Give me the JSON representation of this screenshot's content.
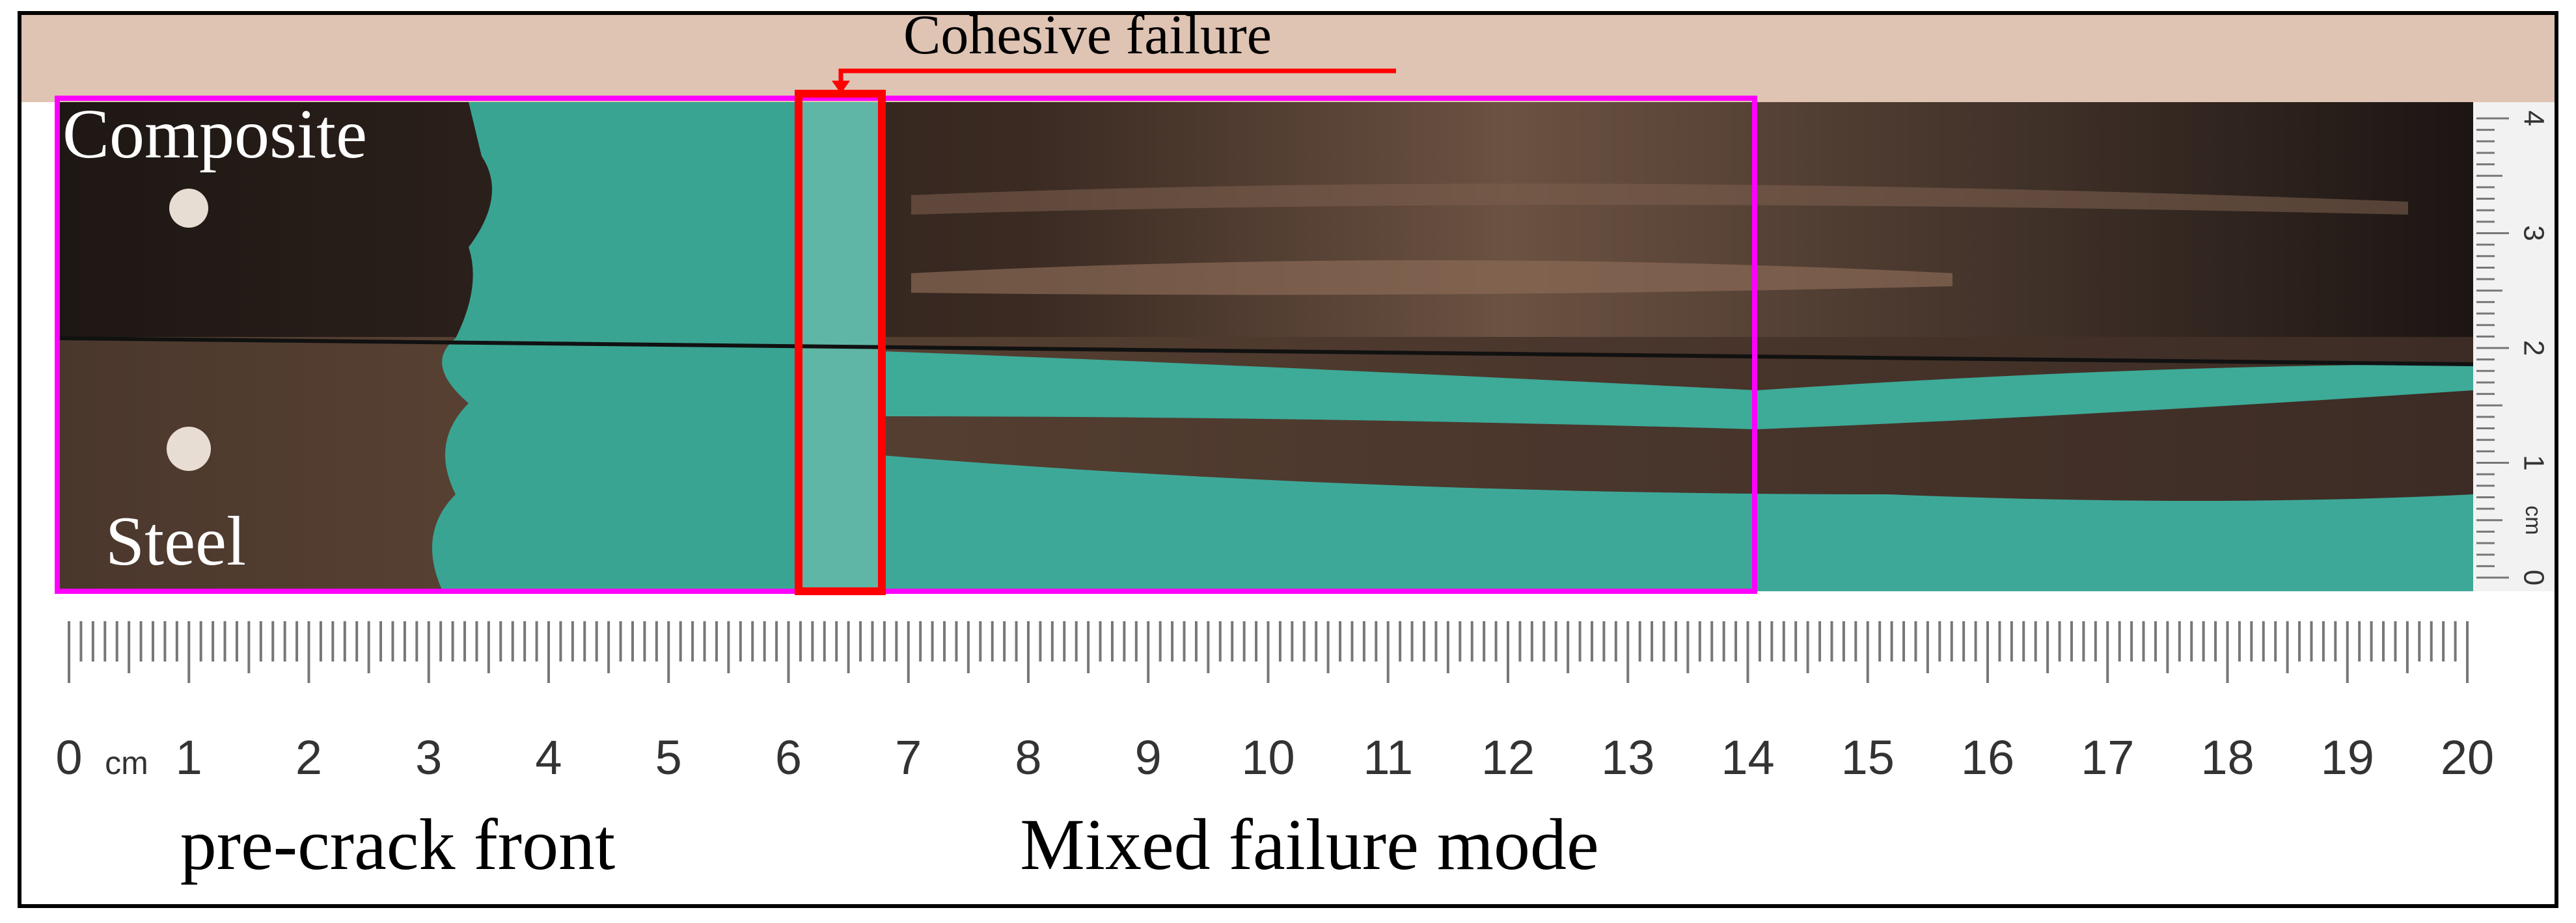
{
  "annotations": {
    "cohesive": "Cohesive failure",
    "composite": "Composite",
    "steel": "Steel",
    "pre_crack": "pre-crack front",
    "mixed": "Mixed failure mode"
  },
  "ruler": {
    "unit": "cm",
    "labels": [
      "0",
      "1",
      "2",
      "3",
      "4",
      "5",
      "6",
      "7",
      "8",
      "9",
      "10",
      "11",
      "12",
      "13",
      "14",
      "15",
      "16",
      "17",
      "18",
      "19",
      "20"
    ]
  },
  "side_ruler": {
    "unit": "cm",
    "labels": [
      "0",
      "1",
      "2",
      "3",
      "4"
    ]
  }
}
